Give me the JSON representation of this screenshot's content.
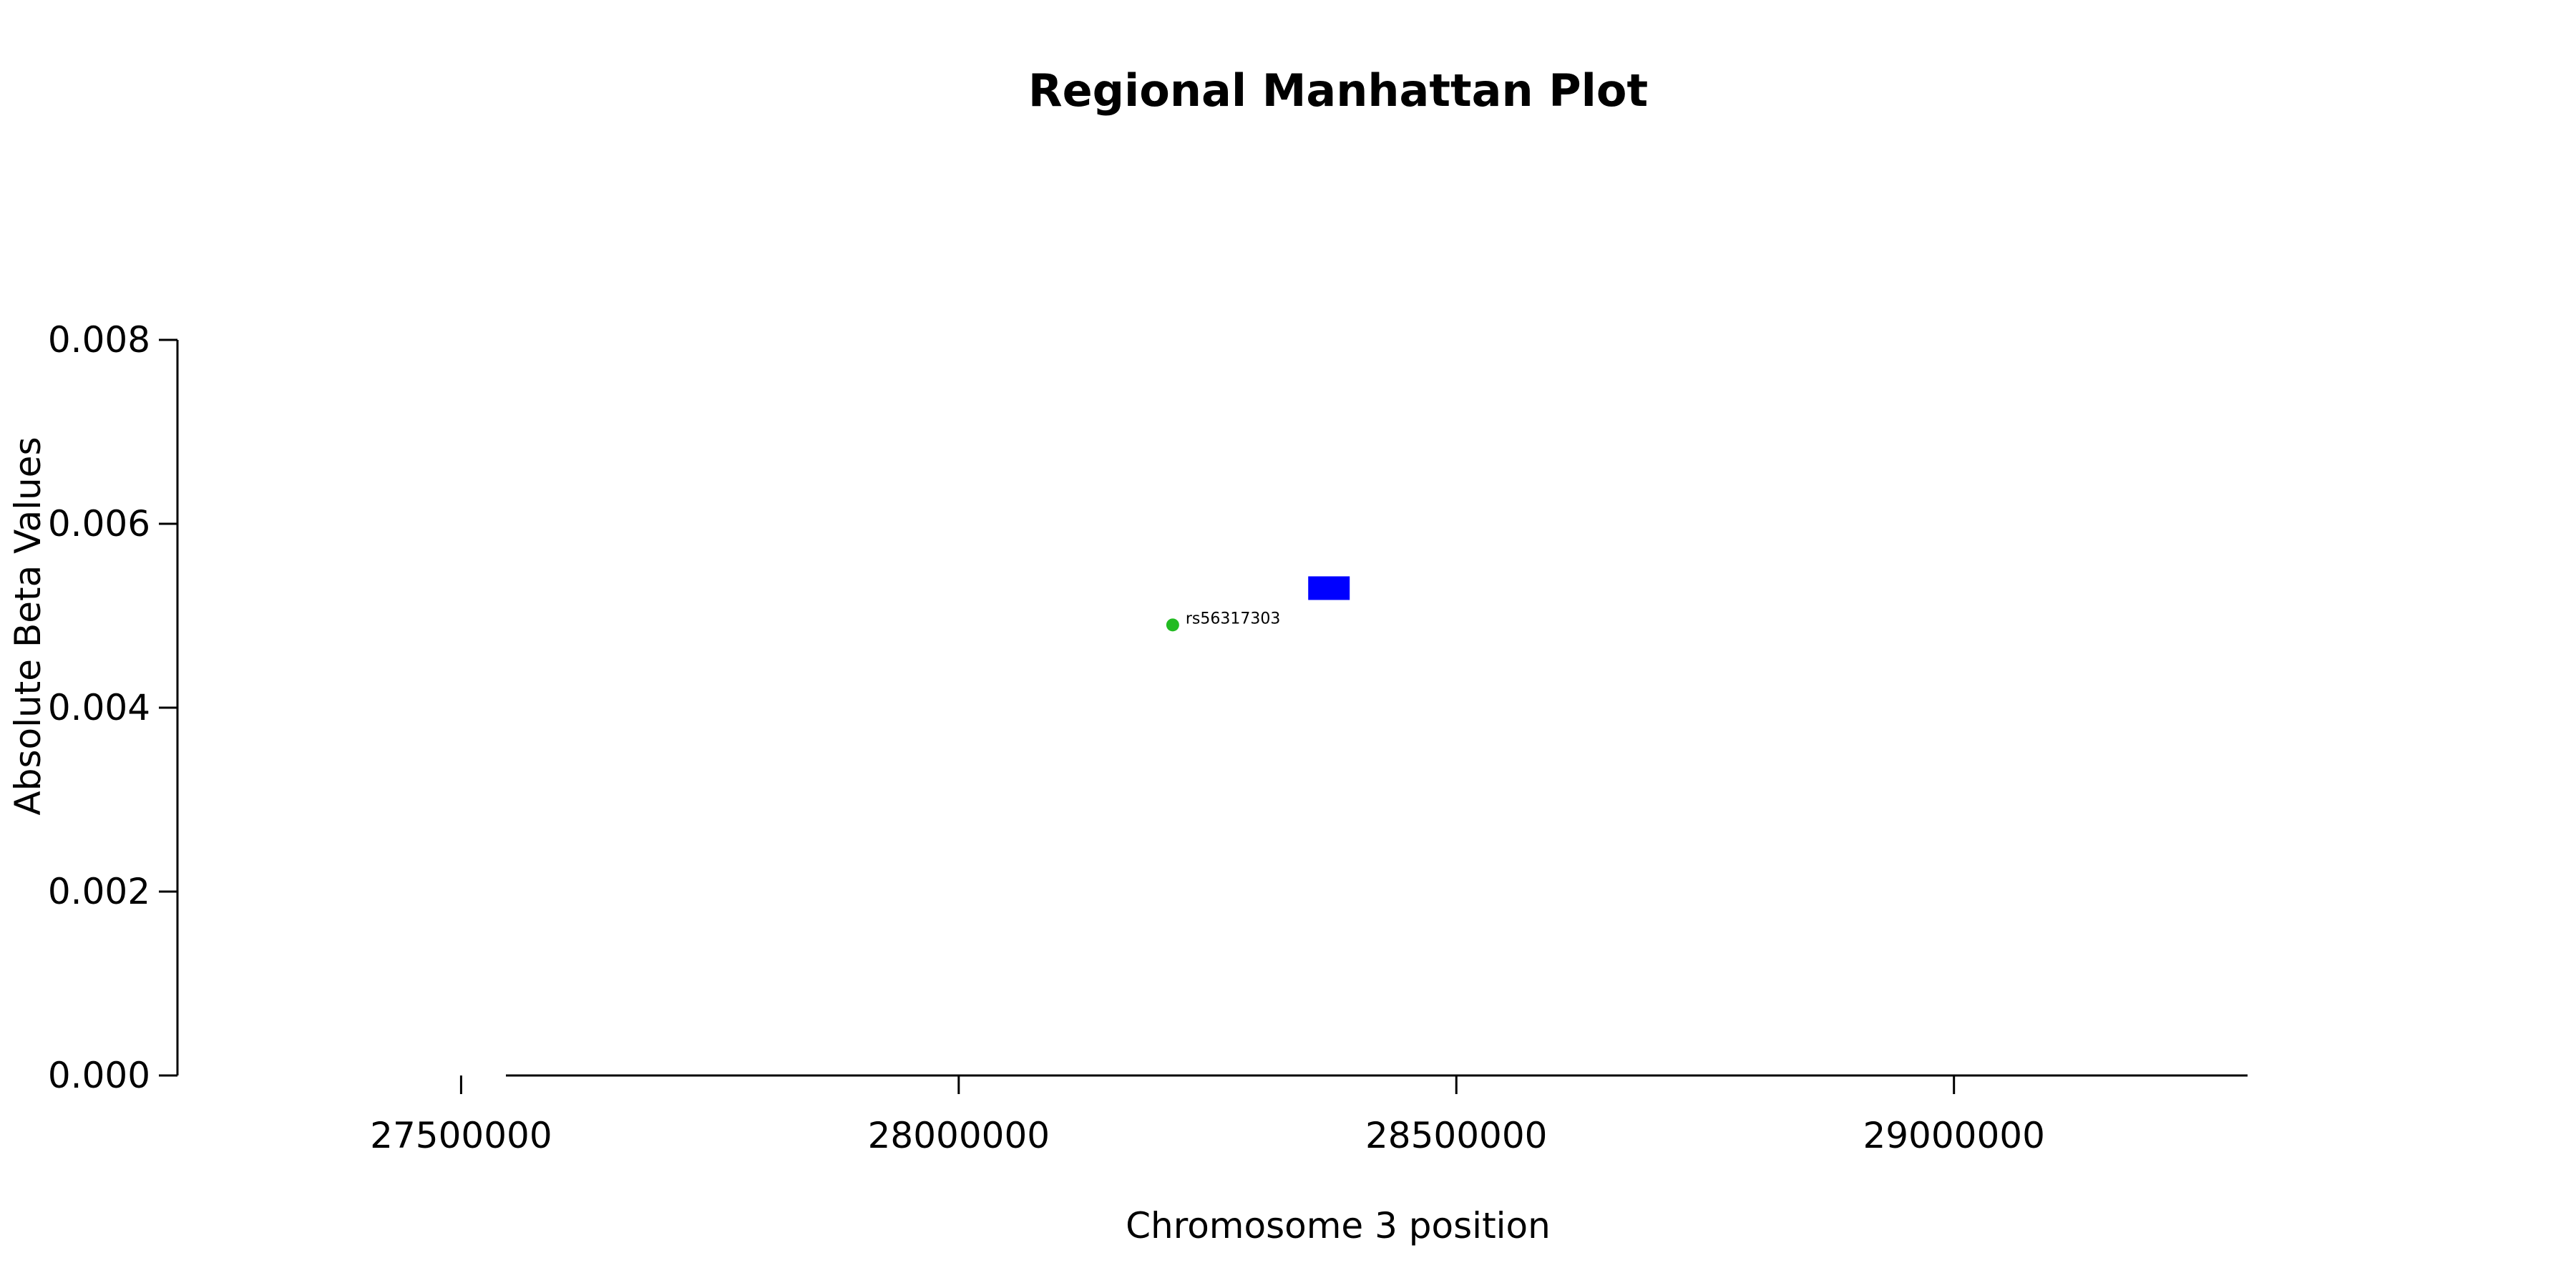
{
  "chart_data": {
    "type": "scatter",
    "title": "Regional Manhattan Plot",
    "xlabel": "Chromosome 3 position",
    "ylabel": "Absolute Beta Values",
    "x_ticks": [
      27500000,
      28000000,
      28500000,
      29000000
    ],
    "x_tick_labels": [
      "27500000",
      "28000000",
      "28500000",
      "29000000"
    ],
    "y_ticks": [
      0,
      0.002,
      0.004,
      0.006,
      0.008
    ],
    "y_tick_labels": [
      "0.000",
      "0.002",
      "0.004",
      "0.006",
      "0.008"
    ],
    "xlim": [
      27215000,
      29295000
    ],
    "ylim": [
      0,
      0.008
    ],
    "grid": false,
    "points": [
      {
        "x": 28215000,
        "y": 0.0049,
        "color": "#22bb22",
        "marker": "circle",
        "label": "rs56317303"
      },
      {
        "x": 28372000,
        "y": 0.0053,
        "color": "#0000ff",
        "marker": "square",
        "label": ""
      }
    ]
  }
}
